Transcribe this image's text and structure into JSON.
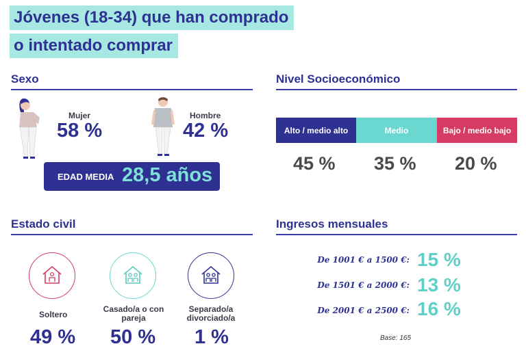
{
  "title": {
    "line1": "Jóvenes (18-34) que han comprado",
    "line2": "o intentado comprar"
  },
  "sexo": {
    "title": "Sexo",
    "mujer": {
      "label": "Mujer",
      "value": "58 %"
    },
    "hombre": {
      "label": "Hombre",
      "value": "42 %"
    },
    "edad_media": {
      "label": "EDAD MEDIA",
      "value": "28,5 años"
    }
  },
  "nivel": {
    "title": "Nivel Socioeconómico",
    "segments": [
      {
        "label": "Alto / medio alto",
        "value": "45 %",
        "color": "#2e3192",
        "text_color": "#ffffff"
      },
      {
        "label": "Medio",
        "value": "35 %",
        "color": "#6ad8d0",
        "text_color": "#ffffff"
      },
      {
        "label": "Bajo / medio bajo",
        "value": "20 %",
        "color": "#d63b63",
        "text_color": "#ffffff"
      }
    ]
  },
  "estado_civil": {
    "title": "Estado civil",
    "items": [
      {
        "label": "Soltero",
        "value": "49 %",
        "color": "#d63b63"
      },
      {
        "label": "Casado/a o con pareja",
        "value": "50 %",
        "color": "#6ad8d0"
      },
      {
        "label": "Separado/a divorciado/a",
        "value": "1 %",
        "color": "#2e3192"
      }
    ]
  },
  "ingresos": {
    "title": "Ingresos mensuales",
    "rows": [
      {
        "label": "De 1001 € a 1500 €:",
        "value": "15 %"
      },
      {
        "label": "De 1501 € a 2000 €:",
        "value": "13 %"
      },
      {
        "label": "De 2001 € a 2500 €:",
        "value": "16 %"
      }
    ],
    "base": "Base: 165"
  }
}
